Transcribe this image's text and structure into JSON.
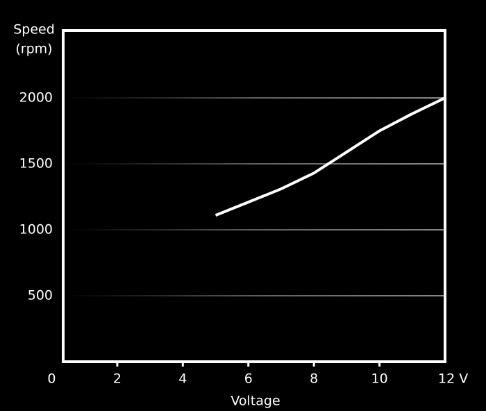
{
  "chart_data": {
    "type": "line",
    "ylabel": [
      "Speed",
      "(rpm)"
    ],
    "xlabel": "Voltage",
    "x": [
      5,
      6,
      7,
      8,
      9,
      10,
      11,
      12
    ],
    "series": [
      {
        "color": "#ffffff",
        "values": [
          1110,
          1210,
          1310,
          1430,
          1590,
          1750,
          1880,
          2000
        ]
      }
    ],
    "xlim": [
      0.35,
      12
    ],
    "xticks": [
      0,
      2,
      4,
      6,
      8,
      10,
      {
        "value": 12,
        "label": "12 V"
      }
    ],
    "ylim": [
      0,
      2500
    ],
    "yticks": [
      500,
      1000,
      1500,
      2000
    ],
    "grid": true
  }
}
